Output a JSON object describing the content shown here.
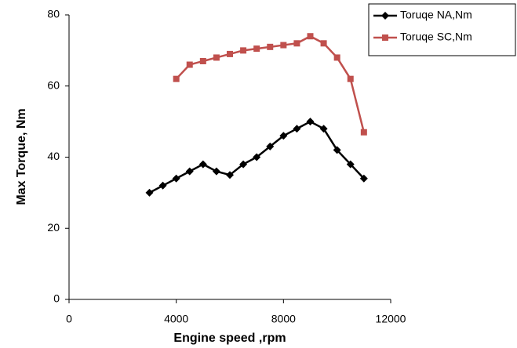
{
  "chart_data": {
    "type": "line",
    "x_label": "Engine speed ,rpm",
    "y_label": "Max Torque, Nm",
    "xlim": [
      0,
      12000
    ],
    "xticks": [
      0,
      4000,
      8000,
      12000
    ],
    "ylim": [
      0,
      80
    ],
    "yticks": [
      0,
      20,
      40,
      60,
      80
    ],
    "grid": false,
    "legend": "outside-top-right",
    "series": [
      {
        "name": "Toruqe NA,Nm",
        "color": "#000000",
        "marker": "diamond",
        "x": [
          3000,
          3500,
          4000,
          4500,
          5000,
          5500,
          6000,
          6500,
          7000,
          7500,
          8000,
          8500,
          9000,
          9500,
          10000,
          10500,
          11000
        ],
        "values": [
          30,
          32,
          34,
          36,
          38,
          36,
          35,
          38,
          40,
          43,
          46,
          48,
          50,
          48,
          42,
          38,
          34
        ]
      },
      {
        "name": "Toruqe SC,Nm",
        "color": "#c0504d",
        "marker": "square",
        "x": [
          4000,
          4500,
          5000,
          5500,
          6000,
          6500,
          7000,
          7500,
          8000,
          8500,
          9000,
          9500,
          10000,
          10500,
          11000
        ],
        "values": [
          62,
          66,
          67,
          68,
          69,
          70,
          70.5,
          71,
          71.5,
          72,
          74,
          72,
          68,
          62,
          47
        ]
      }
    ]
  }
}
